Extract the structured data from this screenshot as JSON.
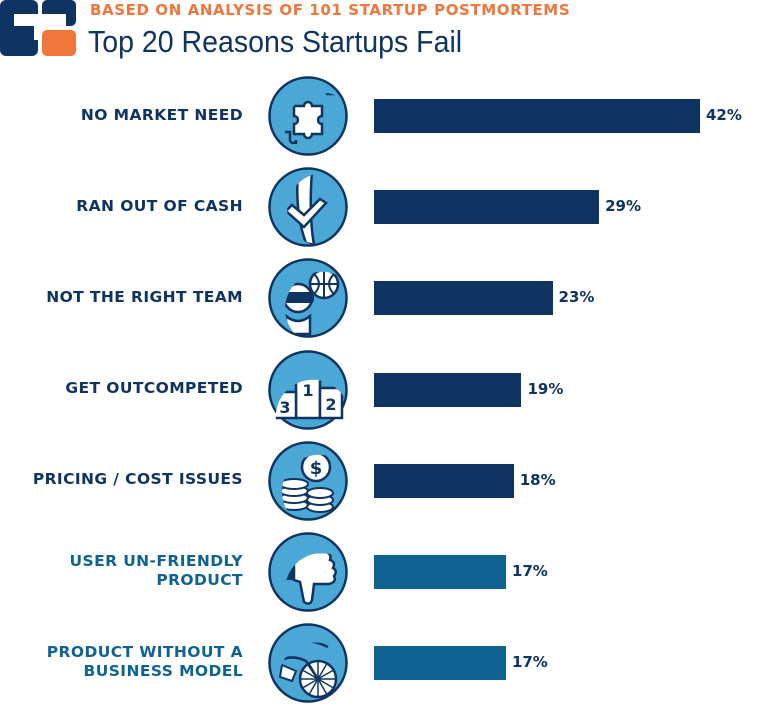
{
  "header": {
    "subtitle": "BASED ON ANALYSIS OF 101 STARTUP POSTMORTEMS",
    "title": "Top 20 Reasons Startups Fail"
  },
  "colors": {
    "navy": "#0f3461",
    "steel_blue": "#0f6393",
    "icon_fill": "#4aa7d6",
    "accent_orange": "#f0763b"
  },
  "chart_data": {
    "type": "bar",
    "orientation": "horizontal",
    "title": "Top 20 Reasons Startups Fail",
    "subtitle": "BASED ON ANALYSIS OF 101 STARTUP POSTMORTEMS",
    "unit": "%",
    "xlim": [
      0,
      42
    ],
    "grid": false,
    "categories": [
      "NO MARKET NEED",
      "RAN OUT OF CASH",
      "NOT THE RIGHT TEAM",
      "GET OUTCOMPETED",
      "PRICING / COST ISSUES",
      "USER UN-FRIENDLY PRODUCT",
      "PRODUCT WITHOUT A BUSINESS MODEL"
    ],
    "label_lines": [
      [
        "NO MARKET NEED"
      ],
      [
        "RAN OUT OF CASH"
      ],
      [
        "NOT THE RIGHT TEAM"
      ],
      [
        "GET OUTCOMPETED"
      ],
      [
        "PRICING / COST ISSUES"
      ],
      [
        "USER UN-FRIENDLY",
        "PRODUCT"
      ],
      [
        "PRODUCT WITHOUT A",
        "BUSINESS MODEL"
      ]
    ],
    "values": [
      42,
      29,
      23,
      19,
      18,
      17,
      17
    ],
    "value_labels": [
      "42%",
      "29%",
      "23%",
      "19%",
      "18%",
      "17%",
      "17%"
    ],
    "bar_colors": [
      "#0f3461",
      "#0f3461",
      "#0f3461",
      "#0f3461",
      "#0f3461",
      "#0f6393",
      "#0f6393"
    ],
    "icons": [
      "puzzle-icon",
      "empty-pocket-icon",
      "team-with-vr-headset-icon",
      "podium-icon",
      "coins-icon",
      "thumbs-down-icon",
      "bicycle-icon"
    ],
    "podium_numbers": [
      "3",
      "1",
      "2"
    ]
  }
}
